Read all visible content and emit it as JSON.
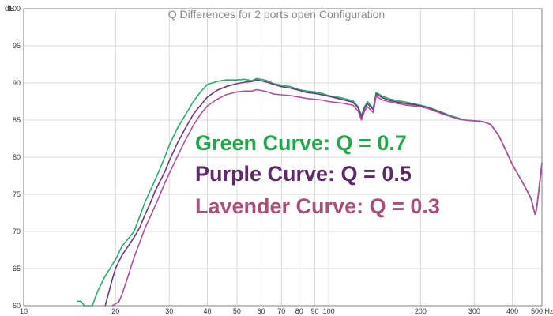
{
  "chart_data": {
    "type": "line",
    "title": "Q Differences for 2 ports open Configuration",
    "ylabel": "dB",
    "xunit": "Hz",
    "xscale": "log",
    "xlim": [
      10,
      500
    ],
    "ylim": [
      60,
      100
    ],
    "grid": true,
    "legend": "none",
    "colors": {
      "background": "#ffffff",
      "grid": "#d9d9d9",
      "axis": "#808080",
      "title": "#8a8a8a",
      "tick_label": "#333333"
    },
    "x_ticks": [
      {
        "value": 10,
        "label": "10"
      },
      {
        "value": 20,
        "label": "20"
      },
      {
        "value": 30,
        "label": "30"
      },
      {
        "value": 40,
        "label": "40"
      },
      {
        "value": 50,
        "label": "50"
      },
      {
        "value": 60,
        "label": "60"
      },
      {
        "value": 70,
        "label": "70"
      },
      {
        "value": 80,
        "label": "80"
      },
      {
        "value": 90,
        "label": "90"
      },
      {
        "value": 100,
        "label": "100"
      },
      {
        "value": 200,
        "label": "200"
      },
      {
        "value": 300,
        "label": "300"
      },
      {
        "value": 400,
        "label": "400"
      },
      {
        "value": 500,
        "label": "500 Hz"
      }
    ],
    "y_ticks": [
      {
        "value": 60,
        "label": "60"
      },
      {
        "value": 65,
        "label": "65"
      },
      {
        "value": 70,
        "label": "70"
      },
      {
        "value": 75,
        "label": "75"
      },
      {
        "value": 80,
        "label": "80"
      },
      {
        "value": 85,
        "label": "85"
      },
      {
        "value": 90,
        "label": "90"
      },
      {
        "value": 95,
        "label": "95"
      },
      {
        "value": 100,
        "label": "100"
      }
    ],
    "annotations": [
      {
        "text": "Green Curve: Q = 0.7",
        "color": "#22a84a"
      },
      {
        "text": "Purple Curve: Q = 0.5",
        "color": "#5e2a6a"
      },
      {
        "text": "Lavender Curve: Q = 0.3",
        "color": "#a8507c"
      }
    ],
    "series": [
      {
        "color": "#2eaa6a",
        "points": [
          [
            15.0,
            60.6
          ],
          [
            15.4,
            60.6
          ],
          [
            15.8,
            60.0
          ],
          [
            16.8,
            60.0
          ],
          [
            17.5,
            62.0
          ],
          [
            18.5,
            64.0
          ],
          [
            19.5,
            65.5
          ],
          [
            20,
            66.2
          ],
          [
            21,
            68.0
          ],
          [
            22,
            69.0
          ],
          [
            23,
            70.0
          ],
          [
            24,
            72.0
          ],
          [
            25,
            74.0
          ],
          [
            26,
            75.5
          ],
          [
            27,
            77.0
          ],
          [
            28,
            78.5
          ],
          [
            29,
            80.0
          ],
          [
            30,
            81.6
          ],
          [
            32,
            84.0
          ],
          [
            34,
            85.8
          ],
          [
            36,
            87.5
          ],
          [
            38,
            88.8
          ],
          [
            40,
            89.8
          ],
          [
            43,
            90.2
          ],
          [
            46,
            90.4
          ],
          [
            50,
            90.4
          ],
          [
            53,
            90.5
          ],
          [
            56,
            90.3
          ],
          [
            58,
            90.6
          ],
          [
            60,
            90.5
          ],
          [
            63,
            90.3
          ],
          [
            66,
            89.9
          ],
          [
            70,
            89.7
          ],
          [
            75,
            89.5
          ],
          [
            80,
            89.1
          ],
          [
            85,
            88.9
          ],
          [
            90,
            88.8
          ],
          [
            95,
            88.6
          ],
          [
            100,
            88.3
          ],
          [
            110,
            88.0
          ],
          [
            120,
            87.6
          ],
          [
            125,
            86.8
          ],
          [
            128,
            85.6
          ],
          [
            131,
            86.8
          ],
          [
            134,
            87.5
          ],
          [
            137,
            87.0
          ],
          [
            140,
            86.6
          ],
          [
            143,
            88.7
          ],
          [
            146,
            88.5
          ],
          [
            150,
            88.2
          ],
          [
            160,
            87.8
          ],
          [
            170,
            87.6
          ],
          [
            180,
            87.4
          ],
          [
            190,
            87.2
          ],
          [
            200,
            87.0
          ],
          [
            210,
            86.8
          ],
          [
            220,
            86.5
          ],
          [
            230,
            86.2
          ],
          [
            240,
            85.9
          ],
          [
            250,
            85.6
          ],
          [
            260,
            85.4
          ],
          [
            270,
            85.2
          ],
          [
            280,
            85.0
          ],
          [
            300,
            84.9
          ],
          [
            320,
            84.8
          ],
          [
            340,
            84.4
          ],
          [
            360,
            83.0
          ],
          [
            380,
            81.0
          ],
          [
            400,
            79.0
          ],
          [
            420,
            77.5
          ],
          [
            440,
            76.0
          ],
          [
            460,
            74.5
          ],
          [
            470,
            73.0
          ],
          [
            475,
            72.3
          ],
          [
            480,
            73.0
          ],
          [
            490,
            76.0
          ],
          [
            500,
            79.2
          ]
        ]
      },
      {
        "color": "#6a3a7e",
        "points": [
          [
            18.5,
            60.0
          ],
          [
            19.5,
            63.5
          ],
          [
            20,
            65.0
          ],
          [
            21,
            66.8
          ],
          [
            22,
            68.0
          ],
          [
            23,
            69.2
          ],
          [
            24,
            70.5
          ],
          [
            25,
            72.3
          ],
          [
            26,
            73.8
          ],
          [
            27,
            75.5
          ],
          [
            28,
            76.8
          ],
          [
            29,
            78.0
          ],
          [
            30,
            79.5
          ],
          [
            32,
            82.0
          ],
          [
            34,
            84.0
          ],
          [
            36,
            85.8
          ],
          [
            38,
            87.0
          ],
          [
            40,
            88.1
          ],
          [
            43,
            89.0
          ],
          [
            46,
            89.5
          ],
          [
            50,
            89.9
          ],
          [
            53,
            90.1
          ],
          [
            56,
            90.2
          ],
          [
            58,
            90.4
          ],
          [
            60,
            90.3
          ],
          [
            63,
            90.1
          ],
          [
            66,
            89.8
          ],
          [
            70,
            89.5
          ],
          [
            75,
            89.3
          ],
          [
            80,
            89.0
          ],
          [
            85,
            88.7
          ],
          [
            90,
            88.6
          ],
          [
            95,
            88.4
          ],
          [
            100,
            88.2
          ],
          [
            110,
            87.8
          ],
          [
            120,
            87.4
          ],
          [
            125,
            86.6
          ],
          [
            128,
            85.4
          ],
          [
            131,
            86.6
          ],
          [
            134,
            87.2
          ],
          [
            137,
            86.8
          ],
          [
            140,
            86.4
          ],
          [
            143,
            88.5
          ],
          [
            146,
            88.3
          ],
          [
            150,
            88.0
          ],
          [
            160,
            87.6
          ],
          [
            170,
            87.4
          ],
          [
            180,
            87.2
          ],
          [
            190,
            87.1
          ],
          [
            200,
            86.9
          ],
          [
            210,
            86.7
          ],
          [
            220,
            86.4
          ],
          [
            230,
            86.1
          ],
          [
            240,
            85.8
          ],
          [
            250,
            85.5
          ],
          [
            260,
            85.3
          ],
          [
            270,
            85.1
          ],
          [
            280,
            85.0
          ],
          [
            300,
            84.9
          ],
          [
            320,
            84.8
          ],
          [
            340,
            84.4
          ],
          [
            360,
            83.0
          ],
          [
            380,
            81.0
          ],
          [
            400,
            79.0
          ],
          [
            420,
            77.5
          ],
          [
            440,
            76.0
          ],
          [
            460,
            74.5
          ],
          [
            470,
            73.0
          ],
          [
            475,
            72.3
          ],
          [
            480,
            73.0
          ],
          [
            490,
            76.0
          ],
          [
            500,
            79.2
          ]
        ]
      },
      {
        "color": "#b0509a",
        "points": [
          [
            19.5,
            60.0
          ],
          [
            20.5,
            60.5
          ],
          [
            21,
            61.5
          ],
          [
            22,
            64.0
          ],
          [
            23,
            66.5
          ],
          [
            24,
            68.5
          ],
          [
            25,
            70.5
          ],
          [
            26,
            72.0
          ],
          [
            27,
            73.5
          ],
          [
            28,
            75.0
          ],
          [
            29,
            76.5
          ],
          [
            30,
            77.8
          ],
          [
            32,
            80.2
          ],
          [
            34,
            82.4
          ],
          [
            36,
            84.3
          ],
          [
            38,
            85.8
          ],
          [
            40,
            86.9
          ],
          [
            43,
            87.8
          ],
          [
            46,
            88.4
          ],
          [
            50,
            88.8
          ],
          [
            53,
            88.9
          ],
          [
            56,
            88.9
          ],
          [
            58,
            89.1
          ],
          [
            60,
            89.0
          ],
          [
            63,
            88.8
          ],
          [
            66,
            88.5
          ],
          [
            70,
            88.4
          ],
          [
            75,
            88.3
          ],
          [
            80,
            88.1
          ],
          [
            85,
            87.9
          ],
          [
            90,
            87.8
          ],
          [
            95,
            87.7
          ],
          [
            100,
            87.5
          ],
          [
            110,
            87.3
          ],
          [
            120,
            87.0
          ],
          [
            125,
            86.2
          ],
          [
            128,
            85.0
          ],
          [
            131,
            86.2
          ],
          [
            134,
            86.8
          ],
          [
            137,
            86.4
          ],
          [
            140,
            86.0
          ],
          [
            143,
            88.2
          ],
          [
            146,
            88.0
          ],
          [
            150,
            87.7
          ],
          [
            160,
            87.4
          ],
          [
            170,
            87.2
          ],
          [
            180,
            87.0
          ],
          [
            190,
            86.9
          ],
          [
            200,
            86.8
          ],
          [
            210,
            86.6
          ],
          [
            220,
            86.3
          ],
          [
            230,
            86.0
          ],
          [
            240,
            85.7
          ],
          [
            250,
            85.5
          ],
          [
            260,
            85.3
          ],
          [
            270,
            85.1
          ],
          [
            280,
            85.0
          ],
          [
            300,
            84.9
          ],
          [
            320,
            84.8
          ],
          [
            340,
            84.4
          ],
          [
            360,
            83.0
          ],
          [
            380,
            81.0
          ],
          [
            400,
            79.0
          ],
          [
            420,
            77.5
          ],
          [
            440,
            76.0
          ],
          [
            460,
            74.5
          ],
          [
            470,
            73.0
          ],
          [
            475,
            72.3
          ],
          [
            480,
            73.0
          ],
          [
            490,
            76.0
          ],
          [
            500,
            79.2
          ]
        ]
      }
    ]
  }
}
